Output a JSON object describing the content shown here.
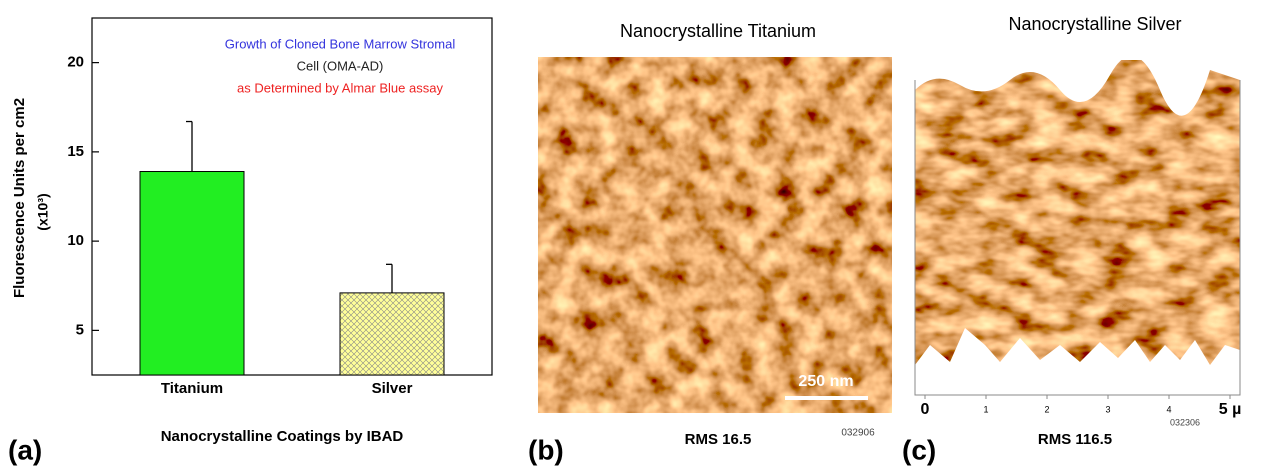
{
  "chart_data": {
    "type": "bar",
    "y_label": "Fluorescence Units per cm2",
    "y_label_unit": "(x10³)",
    "x_label": "Nanocrystalline Coatings by IBAD",
    "panel_label": "(a)",
    "annotations": [
      {
        "text": "Growth of Cloned Bone Marrow Stromal",
        "color": "#3333dd"
      },
      {
        "text": "Cell  (OMA-AD)",
        "color": "#222222"
      },
      {
        "text": "as Determined by Almar Blue assay",
        "color": "#ee2222"
      }
    ],
    "categories": [
      "Titanium",
      "Silver"
    ],
    "values": [
      13.9,
      7.1
    ],
    "errors": [
      2.8,
      1.6
    ],
    "colors": [
      "#22ee22",
      "#ffff99"
    ],
    "fills": [
      "solid",
      "crosshatch"
    ],
    "ylim": [
      2.5,
      22.5
    ],
    "yticks": [
      5,
      10,
      15,
      20
    ]
  },
  "panels": [
    {
      "label": "(b)",
      "title": "Nanocrystalline Titanium",
      "caption": "RMS 16.5",
      "code": "032906",
      "scale_bar": "250 nm"
    },
    {
      "label": "(c)",
      "title": "Nanocrystalline Silver",
      "caption": "RMS 116.5",
      "code": "032306",
      "x_ticks": [
        0,
        1,
        2,
        3,
        4,
        {
          "value": 5,
          "label": "5 µ"
        }
      ]
    }
  ]
}
